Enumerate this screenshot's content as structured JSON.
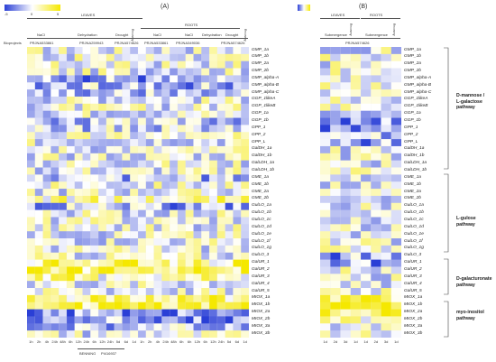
{
  "panel_a": {
    "letter": "(A)",
    "tissues": [
      "LEAVES",
      "ROOTS"
    ],
    "stresses": [
      "NaCl",
      "Dehydration",
      "Drought",
      "NaCl",
      "NaCl",
      "Dehydration",
      "Drought"
    ],
    "bioprojects_label": "Bioprojects",
    "bioprojects": [
      "PRJNA533861",
      "PRJNA259943",
      "PRJNA574626",
      "PRJNA533861",
      "PRJNA349036",
      "PRJNA574626"
    ],
    "recovery_label": "Recovery",
    "times": [
      "1h",
      "2h",
      "4h",
      "24h",
      "48h",
      "6h",
      "12h",
      "24h",
      "6h",
      "12h",
      "24h",
      "5d",
      "6d",
      "1d",
      "1h",
      "2h",
      "4h",
      "24h",
      "48h",
      "6h",
      "6h",
      "12h",
      "6h",
      "12h",
      "24h",
      "5d",
      "6d",
      "1d"
    ],
    "cultivars": [
      "BENNING",
      "PI416937"
    ]
  },
  "panel_b": {
    "letter": "(B)",
    "tissues": [
      "LEAVES",
      "ROOTS"
    ],
    "stresses": [
      "Submergence",
      "Submergence"
    ],
    "bioprojects": [
      "PRJNA574626"
    ],
    "recovery_label": "Recovery",
    "times": [
      "1d",
      "2d",
      "3d",
      "1d",
      "1d",
      "2d",
      "3d",
      "1d"
    ]
  },
  "legend": {
    "ticks": [
      "-5",
      "0",
      "5"
    ]
  },
  "genes": [
    "GMP_1a",
    "GMP_1b",
    "GMP_2a",
    "GMP_2b",
    "GMP_alpha-A",
    "GMP_alpha-B",
    "GMP_alpha-C",
    "GGP_1likeA",
    "GGP_1likeB",
    "GGP_1a",
    "GGP_1b",
    "GPP_1",
    "GPP_2",
    "GPP_L",
    "GalDH_1a",
    "GalDH_1b",
    "GalLDH_1a",
    "GalLDH_1b",
    "GME_1a",
    "GME_1b",
    "GME_2a",
    "GME_2b",
    "GulLO_1a",
    "GulLO_1b",
    "GulLO_1c",
    "GulLO_1d",
    "GulLO_1e",
    "GulLO_1f",
    "GulLO_1g",
    "GulLO_3",
    "GalUR_1",
    "GalUR_2",
    "GalUR_3",
    "GalUR_4",
    "GalUR_5",
    "MIOX_1a",
    "MIOX_1b",
    "MIOX_2a",
    "MIOX_2b",
    "MIOX_3a",
    "MIOX_3b"
  ],
  "pathways": [
    {
      "label": [
        "D-mannose /",
        "L-galactose",
        "pathway"
      ]
    },
    {
      "label": [
        "L-gulose",
        "pathway"
      ]
    },
    {
      "label": [
        "D-galacturonate",
        "pathway"
      ]
    },
    {
      "label": [
        "myo-inositol",
        "pathway"
      ]
    }
  ],
  "colors": {
    "low": "#2a3fd6",
    "mid": "#ffffff",
    "high": "#f5e800"
  }
}
